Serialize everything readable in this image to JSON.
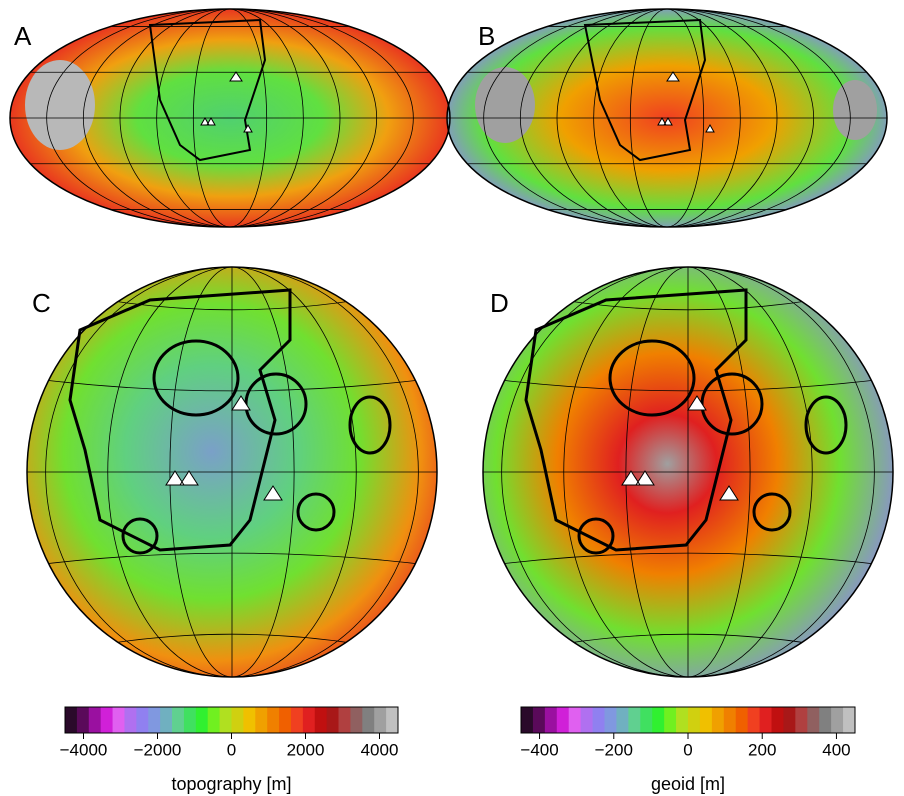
{
  "panels": [
    {
      "label": "A"
    },
    {
      "label": "B"
    },
    {
      "label": "C"
    },
    {
      "label": "D"
    }
  ],
  "colorbars": [
    {
      "label": "topography [m]",
      "lim": [
        -4500,
        4500
      ],
      "ticks": [
        {
          "value": -4000,
          "label": "−4000"
        },
        {
          "value": -2000,
          "label": "−2000"
        },
        0,
        2000,
        4000
      ],
      "colors": [
        "#2a0a2a",
        "#5a0a5a",
        "#9a10a0",
        "#d020d8",
        "#e060f0",
        "#b070f0",
        "#9080f0",
        "#8098e0",
        "#70b0c0",
        "#60d090",
        "#40e060",
        "#30f030",
        "#70f020",
        "#b0e020",
        "#d0d010",
        "#f0c000",
        "#f0a000",
        "#f08000",
        "#f06000",
        "#f04020",
        "#e02020",
        "#c01010",
        "#a81818",
        "#b04040",
        "#906060",
        "#808080",
        "#a0a0a0",
        "#c0c0c0"
      ]
    },
    {
      "label": "geoid [m]",
      "lim": [
        -450,
        450
      ],
      "ticks": [
        {
          "value": -400,
          "label": "−400"
        },
        {
          "value": -200,
          "label": "−200"
        },
        0,
        200,
        400
      ],
      "colors": [
        "#2a0a2a",
        "#5a0a5a",
        "#9a10a0",
        "#d020d8",
        "#e060f0",
        "#b070f0",
        "#9080f0",
        "#8098e0",
        "#70b0c0",
        "#60d090",
        "#40e060",
        "#30f030",
        "#70f020",
        "#b0e020",
        "#d0d010",
        "#f0c000",
        "#f0a000",
        "#f08000",
        "#f06000",
        "#f04020",
        "#e02020",
        "#c01010",
        "#a81818",
        "#b04040",
        "#906060",
        "#808080",
        "#a0a0a0",
        "#c0c0c0"
      ]
    }
  ]
}
